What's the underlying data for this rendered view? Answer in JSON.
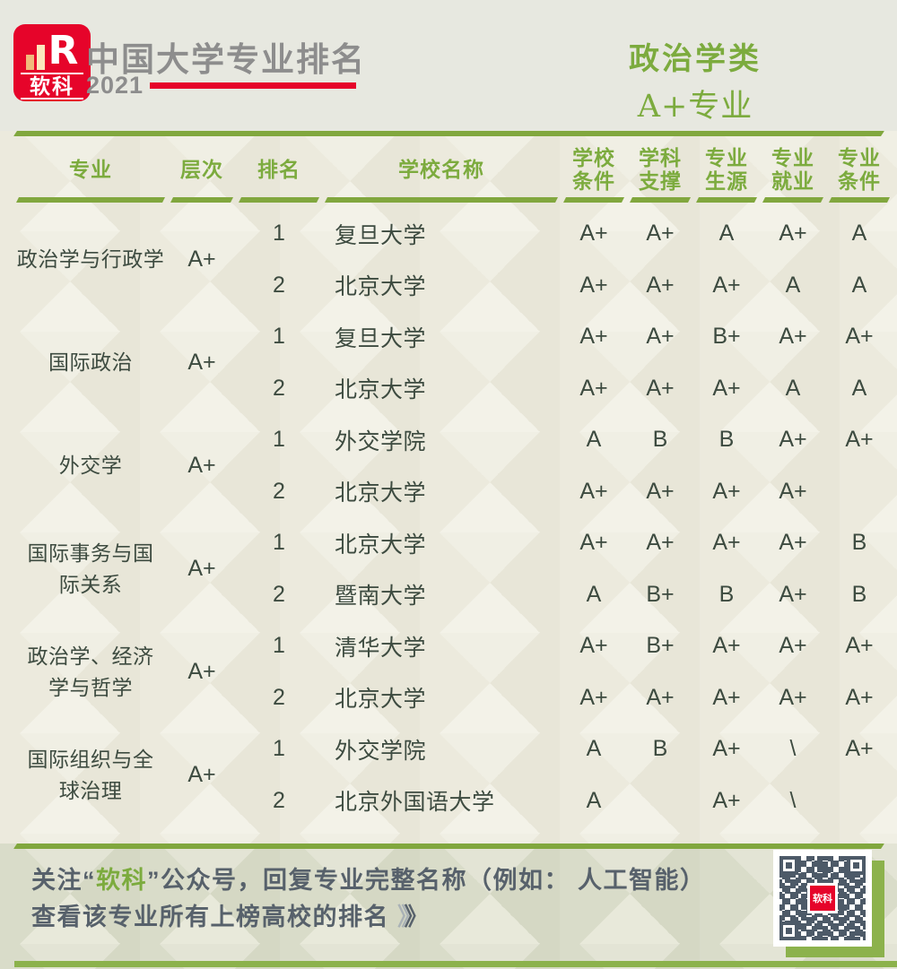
{
  "header": {
    "logo_brand": "软科",
    "logo_r": "R",
    "title": "中国大学专业排名",
    "year": "2021",
    "category": "政治学类",
    "category_sub": "A+专业"
  },
  "table": {
    "columns": [
      "专业",
      "层次",
      "排名",
      "学校名称",
      "学校\n条件",
      "学科\n支撑",
      "专业\n生源",
      "专业\n就业",
      "专业\n条件"
    ],
    "groups": [
      {
        "major": "政治学与行政学",
        "tier": "A+",
        "rows": [
          {
            "rank": "1",
            "school": "复旦大学",
            "scores": [
              "A+",
              "A+",
              "A",
              "A+",
              "A"
            ]
          },
          {
            "rank": "2",
            "school": "北京大学",
            "scores": [
              "A+",
              "A+",
              "A+",
              "A",
              "A"
            ]
          }
        ]
      },
      {
        "major": "国际政治",
        "tier": "A+",
        "rows": [
          {
            "rank": "1",
            "school": "复旦大学",
            "scores": [
              "A+",
              "A+",
              "B+",
              "A+",
              "A+"
            ]
          },
          {
            "rank": "2",
            "school": "北京大学",
            "scores": [
              "A+",
              "A+",
              "A+",
              "A",
              "A"
            ]
          }
        ]
      },
      {
        "major": "外交学",
        "tier": "A+",
        "rows": [
          {
            "rank": "1",
            "school": "外交学院",
            "scores": [
              "A",
              "B",
              "B",
              "A+",
              "A+"
            ]
          },
          {
            "rank": "2",
            "school": "北京大学",
            "scores": [
              "A+",
              "A+",
              "A+",
              "A+",
              ""
            ]
          }
        ]
      },
      {
        "major": "国际事务与国\n际关系",
        "tier": "A+",
        "rows": [
          {
            "rank": "1",
            "school": "北京大学",
            "scores": [
              "A+",
              "A+",
              "A+",
              "A+",
              "B"
            ]
          },
          {
            "rank": "2",
            "school": "暨南大学",
            "scores": [
              "A",
              "B+",
              "B",
              "A+",
              "B"
            ]
          }
        ]
      },
      {
        "major": "政治学、经济\n学与哲学",
        "tier": "A+",
        "rows": [
          {
            "rank": "1",
            "school": "清华大学",
            "scores": [
              "A+",
              "B+",
              "A+",
              "A+",
              "A+"
            ]
          },
          {
            "rank": "2",
            "school": "北京大学",
            "scores": [
              "A+",
              "A+",
              "A+",
              "A+",
              "A+"
            ]
          }
        ]
      },
      {
        "major": "国际组织与全\n球治理",
        "tier": "A+",
        "rows": [
          {
            "rank": "1",
            "school": "外交学院",
            "scores": [
              "A",
              "B",
              "A+",
              "\\",
              "A+"
            ]
          },
          {
            "rank": "2",
            "school": "北京外国语大学",
            "scores": [
              "A",
              "",
              "A+",
              "\\",
              ""
            ]
          }
        ]
      }
    ]
  },
  "footer": {
    "text1_prefix": "关注“",
    "text1_brand": "软科",
    "text1_suffix": "”公众号，回复专业完整名称（例如： 人工智能）",
    "text2": "查看该专业所有上榜高校的排名 ",
    "chevron_light": "》",
    "chevron_dark": "》"
  },
  "icons": {
    "qr": "qr-code",
    "logo": "ruanke-logo"
  },
  "colors": {
    "accent_green": "#7cab3e",
    "line_green": "#81a73e",
    "bottom_bar_green": "#8cb24c",
    "logo_red": "#e6042a",
    "title_gray": "#8d8d8d",
    "body_text": "#3d4b40",
    "footer_text": "#57616b",
    "qr_dark": "#4d5a68"
  }
}
